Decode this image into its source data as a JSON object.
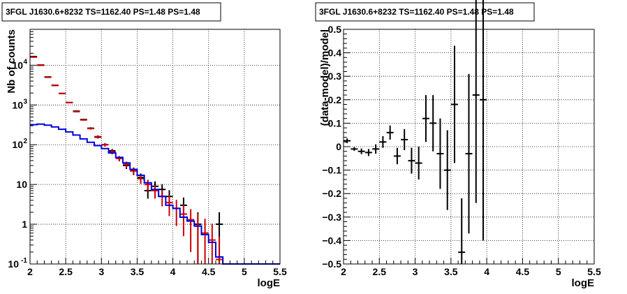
{
  "chart_data": [
    {
      "type": "line",
      "title": "3FGL J1630.6+8232 TS=1162.40 PS=1.48 PS=1.48",
      "xlabel": "logE",
      "ylabel": "Nb of counts",
      "xlim": [
        2,
        5.5
      ],
      "ylim": [
        0.1,
        80000
      ],
      "yscale": "log",
      "grid": true,
      "x_ticks": [
        "2",
        "2.5",
        "3",
        "3.5",
        "4",
        "4.5",
        "5",
        "5.5"
      ],
      "y_ticks": [
        {
          "value": 0.1,
          "label": "10",
          "exp": "-1"
        },
        {
          "value": 1,
          "label": "1",
          "exp": ""
        },
        {
          "value": 10,
          "label": "10",
          "exp": ""
        },
        {
          "value": 100,
          "label": "10",
          "exp": "2"
        },
        {
          "value": 1000,
          "label": "10",
          "exp": "3"
        },
        {
          "value": 10000,
          "label": "10",
          "exp": "4"
        }
      ],
      "series": [
        {
          "kind": "data",
          "color": "#000000",
          "x": [
            2.05,
            2.15,
            2.25,
            2.35,
            2.45,
            2.55,
            2.65,
            2.75,
            2.85,
            2.95,
            3.05,
            3.15,
            3.25,
            3.35,
            3.45,
            3.55,
            3.65,
            3.75,
            3.85,
            3.95,
            4.15,
            4.35,
            4.65
          ],
          "y": [
            16500,
            10000,
            5000,
            3100,
            1950,
            1150,
            700,
            430,
            260,
            155,
            100,
            70,
            45,
            30,
            22,
            15,
            7,
            9,
            7.5,
            5,
            3,
            1,
            1
          ],
          "err": [
            128,
            100,
            71,
            56,
            44,
            34,
            26,
            21,
            16,
            12,
            10,
            8.4,
            6.7,
            5.5,
            4.7,
            3.9,
            2.6,
            3,
            2.7,
            2.2,
            1.7,
            1,
            1
          ]
        },
        {
          "kind": "model",
          "color": "#cc0000",
          "x": [
            2.05,
            2.15,
            2.25,
            2.35,
            2.45,
            2.55,
            2.65,
            2.75,
            2.85,
            2.95,
            3.05,
            3.15,
            3.25,
            3.35,
            3.45,
            3.55,
            3.65,
            3.75,
            3.85,
            3.95,
            4.05,
            4.15,
            4.25,
            4.35,
            4.45,
            4.55,
            4.65
          ],
          "y": [
            16000,
            10200,
            5100,
            3150,
            1950,
            1150,
            680,
            420,
            255,
            160,
            100,
            65,
            45,
            32,
            22,
            14,
            10,
            7,
            5,
            3.5,
            2.5,
            1.8,
            1.3,
            0.9,
            0.6,
            0.4,
            0.13
          ],
          "err": [
            126,
            101,
            71,
            56,
            44,
            34,
            26,
            20,
            16,
            13,
            10,
            8,
            6.7,
            5.7,
            4.7,
            3.7,
            3.2,
            2.6,
            2.2,
            1.9,
            1.6,
            1.3,
            1.1,
            0.95,
            0.77,
            0.63,
            0.36
          ]
        },
        {
          "kind": "background",
          "color": "#0000dd",
          "edges": [
            2.0,
            2.1,
            2.2,
            2.3,
            2.4,
            2.5,
            2.6,
            2.7,
            2.8,
            2.9,
            3.0,
            3.1,
            3.2,
            3.3,
            3.4,
            3.5,
            3.6,
            3.7,
            3.8,
            3.9,
            4.0,
            4.1,
            4.2,
            4.3,
            4.4,
            4.5,
            4.6,
            4.7,
            4.8,
            4.9,
            5.0,
            5.1,
            5.2,
            5.3,
            5.4,
            5.5
          ],
          "values": [
            320,
            330,
            310,
            280,
            245,
            210,
            175,
            140,
            115,
            95,
            80,
            62,
            48,
            35,
            24,
            17,
            11,
            7.5,
            5,
            3,
            2.5,
            1.5,
            1.2,
            0.9,
            0.55,
            0.35,
            0.15,
            0.1,
            0.1,
            0.1,
            0.1,
            0.1,
            0.1,
            0.1,
            0.1
          ]
        }
      ]
    },
    {
      "type": "scatter",
      "title": "3FGL J1630.6+8232 TS=1162.40 PS=1.48 PS=1.48",
      "xlabel": "logE",
      "ylabel": "(data-model)/model",
      "xlim": [
        2,
        5.5
      ],
      "ylim": [
        -0.5,
        0.5
      ],
      "grid": true,
      "x_ticks": [
        "2",
        "2.5",
        "3",
        "3.5",
        "4",
        "4.5",
        "5",
        "5.5"
      ],
      "y_ticks": [
        "-0.5",
        "-0.4",
        "-0.3",
        "-0.2",
        "-0.1",
        "0",
        "0.1",
        "0.2",
        "0.3",
        "0.4",
        "0.5"
      ],
      "series": [
        {
          "color": "#000000",
          "x": [
            2.05,
            2.15,
            2.25,
            2.35,
            2.45,
            2.55,
            2.65,
            2.75,
            2.85,
            2.95,
            3.05,
            3.15,
            3.25,
            3.35,
            3.45,
            3.55,
            3.65,
            3.75,
            3.85,
            3.95
          ],
          "y": [
            0.025,
            -0.01,
            -0.02,
            -0.025,
            -0.01,
            0.02,
            0.06,
            -0.04,
            0.03,
            -0.06,
            -0.07,
            0.12,
            0.1,
            -0.03,
            -0.1,
            0.18,
            -0.45,
            -0.03,
            0.22,
            0.2
          ],
          "err": [
            0.01,
            0.008,
            0.012,
            0.015,
            0.02,
            0.025,
            0.03,
            0.035,
            0.045,
            0.055,
            0.07,
            0.1,
            0.12,
            0.15,
            0.17,
            0.25,
            0.23,
            0.34,
            0.46,
            0.6
          ]
        }
      ]
    }
  ]
}
